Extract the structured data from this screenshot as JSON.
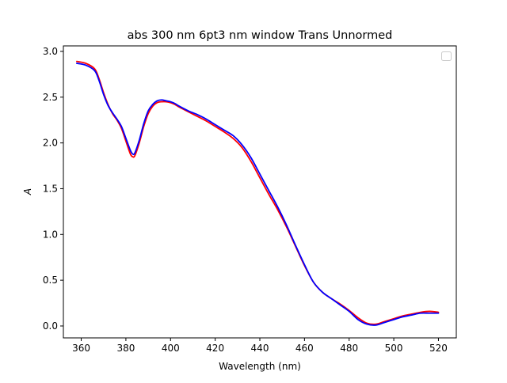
{
  "chart_data": {
    "type": "line",
    "title": "abs 300 nm 6pt3 nm window Trans Unnormed",
    "xlabel": "Wavelength (nm)",
    "ylabel": "A",
    "xlim": [
      352,
      528
    ],
    "ylim": [
      -0.13,
      3.06
    ],
    "xticks": [
      360,
      380,
      400,
      420,
      440,
      460,
      480,
      500,
      520
    ],
    "yticks": [
      0.0,
      0.5,
      1.0,
      1.5,
      2.0,
      2.5,
      3.0
    ],
    "xtick_labels": [
      "360",
      "380",
      "400",
      "420",
      "440",
      "460",
      "480",
      "500",
      "520"
    ],
    "ytick_labels": [
      "0.0",
      "0.5",
      "1.0",
      "1.5",
      "2.0",
      "2.5",
      "3.0"
    ],
    "grid": false,
    "legend": {
      "placement": "top-right",
      "entries": []
    },
    "series": [
      {
        "color": "#ff0000",
        "x": [
          358,
          362,
          366,
          368,
          370,
          372,
          374,
          376,
          378,
          380,
          382,
          383,
          384,
          386,
          388,
          390,
          392,
          394,
          396,
          398,
          400,
          402,
          404,
          408,
          412,
          416,
          420,
          424,
          428,
          432,
          436,
          440,
          444,
          448,
          452,
          456,
          460,
          464,
          468,
          472,
          476,
          480,
          484,
          488,
          492,
          496,
          500,
          504,
          508,
          512,
          516,
          520
        ],
        "y": [
          2.89,
          2.87,
          2.81,
          2.7,
          2.55,
          2.42,
          2.32,
          2.25,
          2.16,
          2.02,
          1.88,
          1.85,
          1.86,
          2.0,
          2.18,
          2.32,
          2.4,
          2.44,
          2.45,
          2.45,
          2.44,
          2.42,
          2.39,
          2.34,
          2.29,
          2.24,
          2.18,
          2.12,
          2.05,
          1.95,
          1.8,
          1.62,
          1.44,
          1.27,
          1.08,
          0.87,
          0.66,
          0.48,
          0.37,
          0.3,
          0.24,
          0.17,
          0.09,
          0.03,
          0.02,
          0.05,
          0.08,
          0.11,
          0.13,
          0.15,
          0.16,
          0.15
        ]
      },
      {
        "color": "#0000ff",
        "x": [
          358,
          362,
          366,
          368,
          370,
          372,
          374,
          376,
          378,
          380,
          382,
          383,
          384,
          386,
          388,
          390,
          392,
          394,
          396,
          398,
          400,
          402,
          404,
          408,
          412,
          416,
          420,
          424,
          428,
          432,
          436,
          440,
          444,
          448,
          452,
          456,
          460,
          464,
          468,
          472,
          476,
          480,
          484,
          488,
          492,
          496,
          500,
          504,
          508,
          512,
          516,
          520
        ],
        "y": [
          2.87,
          2.85,
          2.79,
          2.68,
          2.53,
          2.41,
          2.33,
          2.26,
          2.18,
          2.05,
          1.92,
          1.88,
          1.89,
          2.03,
          2.21,
          2.35,
          2.42,
          2.46,
          2.47,
          2.46,
          2.45,
          2.43,
          2.4,
          2.35,
          2.31,
          2.26,
          2.2,
          2.14,
          2.08,
          1.98,
          1.84,
          1.66,
          1.48,
          1.3,
          1.1,
          0.88,
          0.67,
          0.48,
          0.37,
          0.3,
          0.23,
          0.16,
          0.07,
          0.02,
          0.01,
          0.04,
          0.07,
          0.1,
          0.12,
          0.14,
          0.14,
          0.14
        ]
      }
    ]
  }
}
